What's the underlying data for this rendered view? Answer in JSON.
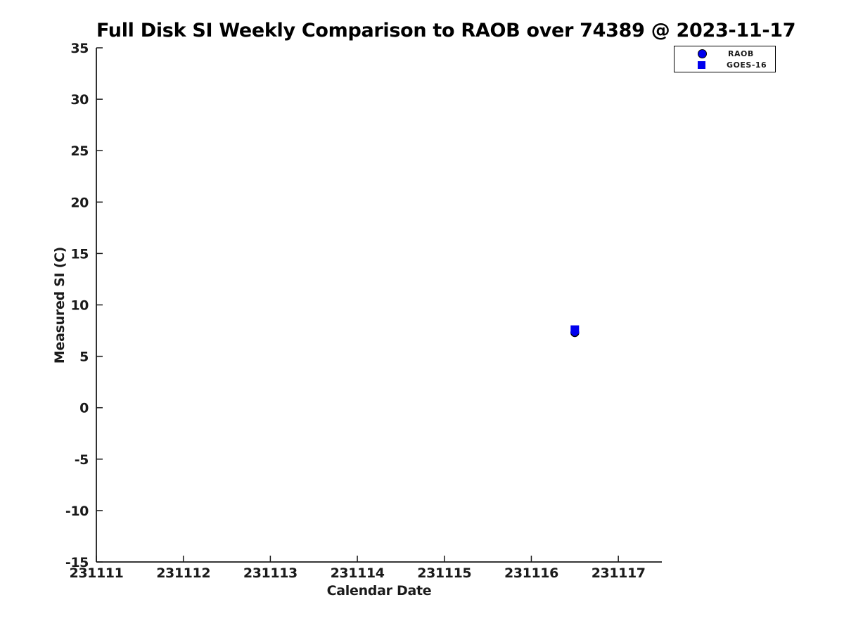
{
  "chart_data": {
    "type": "scatter",
    "title": "Full Disk SI Weekly Comparison to RAOB over 74389 @ 2023-11-17",
    "xlabel": "Calendar Date",
    "ylabel": "Measured SI (C)",
    "xlim": [
      231111,
      231117.5
    ],
    "ylim": [
      -15,
      35
    ],
    "xticks": [
      231111,
      231112,
      231113,
      231114,
      231115,
      231116,
      231117
    ],
    "yticks": [
      35,
      30,
      25,
      20,
      15,
      10,
      5,
      0,
      -5,
      -10,
      -15
    ],
    "grid": false,
    "legend": {
      "position": "top-right",
      "entries": [
        "RAOB",
        "GOES-16"
      ]
    },
    "series": [
      {
        "name": "RAOB",
        "marker": "circle",
        "face_color": "#0000EE",
        "edge_color": "#000000",
        "points": [
          {
            "x": 231116.5,
            "y": 7.3
          }
        ]
      },
      {
        "name": "GOES-16",
        "marker": "square",
        "face_color": "#0000EE",
        "edge_color": "#0000EE",
        "points": [
          {
            "x": 231116.5,
            "y": 7.6
          }
        ]
      }
    ]
  },
  "colors": {
    "marker_blue": "#0000EE",
    "axis": "#1a1a1a",
    "tick_text": "#1a1a1a",
    "title_text": "#000000",
    "background": "#ffffff"
  }
}
